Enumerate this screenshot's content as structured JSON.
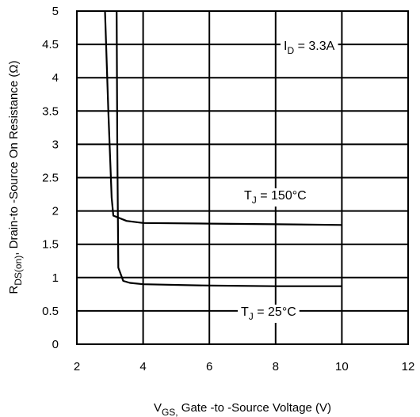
{
  "chart_data": {
    "type": "line",
    "xlim": [
      2,
      12
    ],
    "ylim": [
      0,
      5
    ],
    "x_ticks": [
      "2",
      "4",
      "6",
      "8",
      "10",
      "12"
    ],
    "y_ticks": [
      "0",
      "0.5",
      "1",
      "1.5",
      "2",
      "2.5",
      "3",
      "3.5",
      "4",
      "4.5",
      "5"
    ],
    "grid": true,
    "xlabel": {
      "main": "V",
      "sub": "GS,",
      "rest": " Gate -to -Source Voltage  (V)"
    },
    "ylabel": {
      "main": "R",
      "sub": "DS(on)",
      "rest": ",  Drain-to -Source On Resistance  (Ω)"
    },
    "series": [
      {
        "label": {
          "main": "T",
          "sub": "J",
          "rest": " = 150°C"
        },
        "points": [
          [
            2.85,
            5.0
          ],
          [
            2.95,
            3.5
          ],
          [
            3.05,
            2.2
          ],
          [
            3.1,
            1.93
          ],
          [
            3.5,
            1.85
          ],
          [
            4,
            1.82
          ],
          [
            6,
            1.81
          ],
          [
            8,
            1.8
          ],
          [
            10,
            1.79
          ]
        ]
      },
      {
        "label": {
          "main": "T",
          "sub": "J",
          "rest": " = 25°C"
        },
        "points": [
          [
            3.2,
            5.0
          ],
          [
            3.22,
            3.0
          ],
          [
            3.25,
            1.15
          ],
          [
            3.4,
            0.95
          ],
          [
            3.6,
            0.92
          ],
          [
            4,
            0.9
          ],
          [
            6,
            0.88
          ],
          [
            8,
            0.87
          ],
          [
            10,
            0.87
          ]
        ]
      }
    ],
    "annotations": [
      {
        "label": {
          "main": "I",
          "sub": "D",
          "rest": " = 3.3A"
        }
      }
    ]
  }
}
